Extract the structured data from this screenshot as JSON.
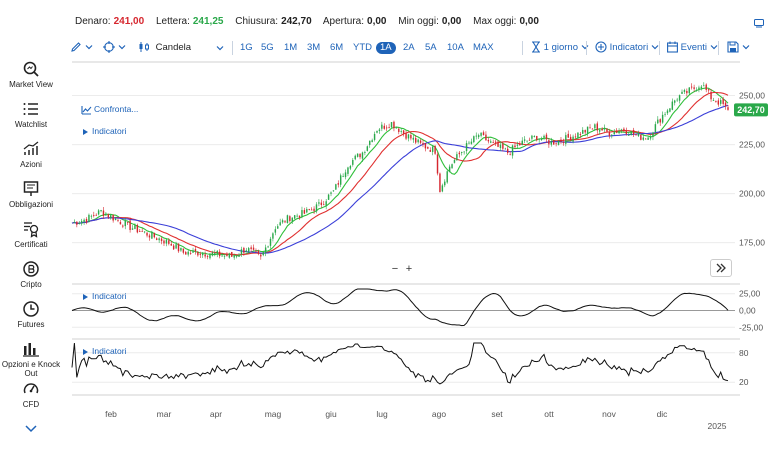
{
  "quote": {
    "bid_label": "Denaro:",
    "bid_value": "241,00",
    "ask_label": "Lettera:",
    "ask_value": "241,25",
    "close_label": "Chiusura:",
    "close_value": "242,70",
    "open_label": "Apertura:",
    "open_value": "0,00",
    "min_label": "Min oggi:",
    "min_value": "0,00",
    "max_label": "Max oggi:",
    "max_value": "0,00"
  },
  "sidebar": {
    "items": [
      {
        "label": "Market View",
        "icon": "zoom-search-icon"
      },
      {
        "label": "Watchlist",
        "icon": "list-icon"
      },
      {
        "label": "Azioni",
        "icon": "trend-chart-icon"
      },
      {
        "label": "Obbligazioni",
        "icon": "document-icon"
      },
      {
        "label": "Certificati",
        "icon": "certificate-icon"
      },
      {
        "label": "Cripto",
        "icon": "bitcoin-icon"
      },
      {
        "label": "Futures",
        "icon": "clock-icon"
      },
      {
        "label": "Opzioni e Knock Out",
        "icon": "bar-chart-icon"
      },
      {
        "label": "CFD",
        "icon": "gauge-icon"
      }
    ]
  },
  "toolbar": {
    "chart_type": "Candela",
    "periods": [
      "1G",
      "5G",
      "1M",
      "3M",
      "6M",
      "YTD",
      "1A",
      "2A",
      "5A",
      "10A",
      "MAX"
    ],
    "active_period": "1A",
    "interval": "1 giorno",
    "indicators_label": "Indicatori",
    "events_label": "Eventi"
  },
  "overlay": {
    "compare_label": "Confronta...",
    "indicators_label": "Indicatori",
    "osc1_label": "Indicatori",
    "osc2_label": "Indicatori"
  },
  "colors": {
    "accent": "#1e63b8",
    "up": "#2aa84a",
    "down": "#d6262e",
    "ma_green": "#2fbf3a",
    "ma_red": "#e03030",
    "ma_blue": "#3b3fd8",
    "last_price_bg": "#2aa84a"
  },
  "chart_data": {
    "type": "candlestick",
    "price_axis_ticks": [
      "250,00",
      "225,00",
      "200,00",
      "175,00"
    ],
    "price_axis_values": [
      250,
      225,
      200,
      175
    ],
    "ylim": [
      157,
      262
    ],
    "last_price_label": "242,70",
    "last_price": 242.7,
    "month_labels": [
      "feb",
      "mar",
      "apr",
      "mag",
      "giu",
      "lug",
      "ago",
      "set",
      "ott",
      "nov",
      "dic"
    ],
    "year_label": "2025",
    "close_keypoints": [
      [
        0,
        185
      ],
      [
        6,
        187
      ],
      [
        12,
        191
      ],
      [
        18,
        187
      ],
      [
        24,
        183
      ],
      [
        32,
        179
      ],
      [
        40,
        175
      ],
      [
        46,
        170
      ],
      [
        52,
        170
      ],
      [
        60,
        169
      ],
      [
        66,
        168
      ],
      [
        72,
        172
      ],
      [
        78,
        167
      ],
      [
        84,
        183
      ],
      [
        90,
        188
      ],
      [
        96,
        190
      ],
      [
        102,
        194
      ],
      [
        108,
        201
      ],
      [
        114,
        215
      ],
      [
        120,
        221
      ],
      [
        126,
        233
      ],
      [
        132,
        236
      ],
      [
        138,
        230
      ],
      [
        144,
        225
      ],
      [
        150,
        222
      ],
      [
        152,
        202
      ],
      [
        156,
        214
      ],
      [
        162,
        223
      ],
      [
        168,
        230
      ],
      [
        174,
        225
      ],
      [
        180,
        221
      ],
      [
        186,
        226
      ],
      [
        192,
        229
      ],
      [
        198,
        226
      ],
      [
        204,
        228
      ],
      [
        210,
        231
      ],
      [
        216,
        234
      ],
      [
        222,
        231
      ],
      [
        228,
        233
      ],
      [
        234,
        229
      ],
      [
        238,
        229
      ],
      [
        244,
        240
      ],
      [
        250,
        249
      ],
      [
        256,
        253
      ],
      [
        260,
        256
      ],
      [
        264,
        249
      ],
      [
        268,
        246
      ],
      [
        270,
        244.5
      ],
      [
        271,
        242.7
      ]
    ],
    "osc1_ticks": [
      "25,00",
      "0,00",
      "-25,00"
    ],
    "osc1_values": [
      25,
      0,
      -25
    ],
    "osc1_ylim": [
      -32,
      32
    ],
    "osc2_ticks": [
      "80",
      "20"
    ],
    "osc2_values": [
      80,
      20
    ],
    "osc2_ylim": [
      0,
      100
    ]
  }
}
